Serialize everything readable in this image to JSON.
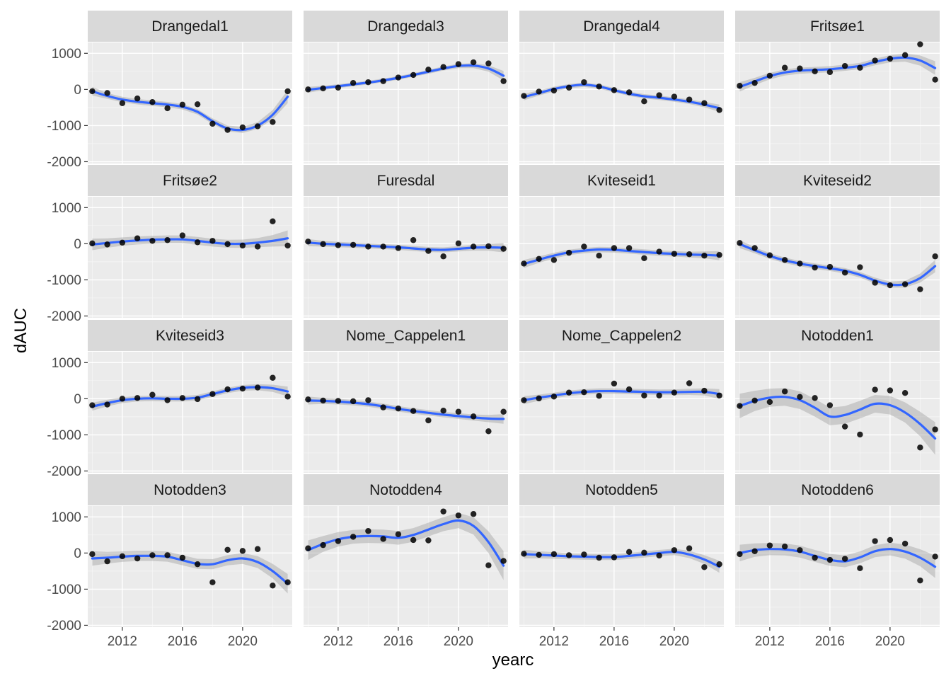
{
  "chart_data": {
    "type": "scatter",
    "xlabel": "yearc",
    "ylabel": "dAUC",
    "xlim": [
      2009.7,
      2023.3
    ],
    "ylim": [
      -2050,
      1300
    ],
    "x_ticks": [
      2012,
      2016,
      2020
    ],
    "x_tick_labels": [
      "2012",
      "2016",
      "2020"
    ],
    "y_ticks": [
      -2000,
      -1000,
      0,
      1000
    ],
    "y_tick_labels": [
      "-2000",
      "-1000",
      "0",
      "1000"
    ],
    "grid": true,
    "facet_columns": 4,
    "years": [
      2010,
      2011,
      2012,
      2013,
      2014,
      2015,
      2016,
      2017,
      2018,
      2019,
      2020,
      2021,
      2022,
      2023
    ],
    "colors": {
      "panel": "#EBEBEB",
      "strip": "#D9D9D9",
      "points": "#000000",
      "smooth_line": "#3366FF",
      "confidence_band": "#999999"
    },
    "panels": [
      {
        "name": "Drangedal1",
        "points": [
          -50,
          -100,
          -380,
          -250,
          -350,
          -520,
          -420,
          -410,
          -950,
          -1120,
          -1050,
          -1020,
          -900,
          -50
        ],
        "smooth": [
          -50,
          -180,
          -280,
          -340,
          -380,
          -420,
          -480,
          -620,
          -880,
          -1080,
          -1120,
          -1000,
          -700,
          -200
        ],
        "ci": [
          120,
          80,
          75,
          75,
          75,
          75,
          75,
          75,
          80,
          80,
          85,
          95,
          130,
          180
        ]
      },
      {
        "name": "Drangedal3",
        "points": [
          0,
          30,
          50,
          180,
          200,
          230,
          330,
          400,
          550,
          620,
          700,
          750,
          720,
          230
        ],
        "smooth": [
          -10,
          40,
          90,
          140,
          190,
          250,
          320,
          400,
          490,
          580,
          650,
          660,
          580,
          380
        ],
        "ci": [
          80,
          60,
          55,
          50,
          50,
          50,
          50,
          50,
          55,
          55,
          60,
          70,
          90,
          130
        ]
      },
      {
        "name": "Drangedal4",
        "points": [
          -180,
          -60,
          -30,
          50,
          200,
          80,
          -20,
          -80,
          -330,
          -160,
          -200,
          -280,
          -380,
          -570
        ],
        "smooth": [
          -210,
          -100,
          10,
          90,
          130,
          80,
          -20,
          -120,
          -190,
          -230,
          -280,
          -340,
          -420,
          -520
        ],
        "ci": [
          90,
          70,
          65,
          60,
          60,
          60,
          60,
          60,
          60,
          60,
          60,
          65,
          75,
          100
        ]
      },
      {
        "name": "Fritsøe1",
        "points": [
          100,
          180,
          380,
          600,
          580,
          500,
          480,
          650,
          600,
          800,
          850,
          950,
          1250,
          270
        ],
        "smooth": [
          70,
          220,
          370,
          470,
          520,
          540,
          560,
          600,
          650,
          760,
          850,
          880,
          800,
          590
        ],
        "ci": [
          130,
          100,
          90,
          85,
          85,
          85,
          85,
          85,
          85,
          90,
          100,
          110,
          140,
          190
        ]
      },
      {
        "name": "Fritsøe2",
        "points": [
          10,
          -20,
          30,
          150,
          80,
          100,
          230,
          40,
          80,
          -10,
          -50,
          -80,
          620,
          -50
        ],
        "smooth": [
          -20,
          20,
          60,
          90,
          110,
          120,
          120,
          80,
          30,
          0,
          0,
          30,
          80,
          150
        ],
        "ci": [
          160,
          130,
          115,
          110,
          110,
          110,
          110,
          110,
          110,
          110,
          115,
          125,
          160,
          220
        ]
      },
      {
        "name": "Furesdal",
        "points": [
          60,
          -10,
          -40,
          -30,
          -80,
          -80,
          -120,
          100,
          -200,
          -350,
          10,
          -80,
          -70,
          -140
        ],
        "smooth": [
          30,
          0,
          -20,
          -40,
          -60,
          -80,
          -100,
          -130,
          -160,
          -170,
          -140,
          -110,
          -100,
          -110
        ],
        "ci": [
          100,
          80,
          75,
          70,
          70,
          70,
          70,
          70,
          70,
          70,
          75,
          80,
          95,
          130
        ]
      },
      {
        "name": "Kviteseid1",
        "points": [
          -550,
          -420,
          -450,
          -250,
          -80,
          -330,
          -120,
          -120,
          -400,
          -220,
          -280,
          -290,
          -330,
          -310
        ],
        "smooth": [
          -560,
          -440,
          -330,
          -240,
          -190,
          -160,
          -170,
          -200,
          -230,
          -260,
          -280,
          -300,
          -310,
          -330
        ],
        "ci": [
          110,
          90,
          80,
          75,
          75,
          75,
          75,
          75,
          75,
          75,
          75,
          80,
          95,
          125
        ]
      },
      {
        "name": "Kviteseid2",
        "points": [
          20,
          -120,
          -320,
          -450,
          -550,
          -660,
          -640,
          -800,
          -650,
          -1080,
          -1150,
          -1120,
          -1260,
          -350
        ],
        "smooth": [
          -10,
          -180,
          -340,
          -460,
          -550,
          -620,
          -680,
          -750,
          -860,
          -1020,
          -1130,
          -1120,
          -950,
          -620
        ],
        "ci": [
          110,
          85,
          80,
          75,
          75,
          75,
          75,
          75,
          80,
          80,
          85,
          95,
          125,
          170
        ]
      },
      {
        "name": "Kviteseid3",
        "points": [
          -180,
          -160,
          0,
          20,
          110,
          -40,
          20,
          -10,
          130,
          260,
          280,
          310,
          580,
          60
        ],
        "smooth": [
          -220,
          -120,
          -40,
          0,
          10,
          0,
          0,
          30,
          130,
          230,
          300,
          320,
          290,
          200
        ],
        "ci": [
          110,
          90,
          80,
          75,
          75,
          75,
          75,
          75,
          75,
          75,
          80,
          85,
          100,
          135
        ]
      },
      {
        "name": "Nome_Cappelen1",
        "points": [
          -20,
          -50,
          -60,
          -70,
          -40,
          -240,
          -270,
          -340,
          -600,
          -330,
          -360,
          -490,
          -900,
          -360
        ],
        "smooth": [
          -50,
          -60,
          -80,
          -110,
          -150,
          -210,
          -280,
          -340,
          -390,
          -440,
          -480,
          -520,
          -550,
          -560
        ],
        "ci": [
          110,
          85,
          80,
          75,
          75,
          75,
          75,
          75,
          75,
          75,
          80,
          85,
          100,
          135
        ]
      },
      {
        "name": "Nome_Cappelen2",
        "points": [
          -40,
          10,
          60,
          170,
          180,
          80,
          420,
          260,
          90,
          90,
          170,
          430,
          220,
          90
        ],
        "smooth": [
          -40,
          30,
          90,
          150,
          190,
          210,
          210,
          200,
          190,
          180,
          180,
          190,
          190,
          130
        ],
        "ci": [
          110,
          85,
          80,
          75,
          75,
          75,
          75,
          75,
          75,
          75,
          80,
          85,
          100,
          135
        ]
      },
      {
        "name": "Notodden1",
        "points": [
          -200,
          -50,
          -90,
          200,
          50,
          20,
          -180,
          -770,
          -990,
          250,
          230,
          160,
          -1350,
          -850
        ],
        "smooth": [
          -200,
          -60,
          30,
          50,
          -40,
          -250,
          -490,
          -450,
          -300,
          -140,
          -180,
          -380,
          -700,
          -1100
        ],
        "ci": [
          340,
          280,
          250,
          245,
          245,
          245,
          245,
          245,
          245,
          245,
          255,
          280,
          340,
          450
        ]
      },
      {
        "name": "Notodden3",
        "points": [
          -30,
          -230,
          -90,
          -150,
          -60,
          -60,
          -130,
          -310,
          -810,
          90,
          60,
          110,
          -900,
          -810
        ],
        "smooth": [
          -150,
          -130,
          -100,
          -80,
          -80,
          -100,
          -200,
          -300,
          -310,
          -200,
          -150,
          -250,
          -500,
          -850
        ],
        "ci": [
          200,
          160,
          145,
          140,
          140,
          140,
          140,
          140,
          140,
          140,
          150,
          165,
          200,
          270
        ]
      },
      {
        "name": "Notodden4",
        "points": [
          130,
          220,
          330,
          450,
          610,
          390,
          520,
          360,
          350,
          1150,
          1040,
          1080,
          -340,
          -220
        ],
        "smooth": [
          80,
          250,
          380,
          450,
          470,
          460,
          420,
          500,
          650,
          800,
          900,
          750,
          300,
          -350
        ],
        "ci": [
          270,
          220,
          200,
          190,
          190,
          190,
          190,
          190,
          190,
          195,
          210,
          240,
          300,
          400
        ]
      },
      {
        "name": "Notodden5",
        "points": [
          -20,
          -50,
          -30,
          -60,
          -40,
          -130,
          -120,
          30,
          10,
          -70,
          80,
          130,
          -390,
          -310
        ],
        "smooth": [
          -30,
          -50,
          -70,
          -90,
          -100,
          -110,
          -110,
          -80,
          -40,
          0,
          30,
          -40,
          -180,
          -380
        ],
        "ci": [
          120,
          100,
          90,
          85,
          85,
          85,
          85,
          85,
          85,
          85,
          90,
          100,
          120,
          165
        ]
      },
      {
        "name": "Notodden6",
        "points": [
          -30,
          50,
          210,
          180,
          80,
          -130,
          -190,
          -160,
          -420,
          330,
          360,
          260,
          -760,
          -100
        ],
        "smooth": [
          0,
          80,
          110,
          100,
          40,
          -80,
          -190,
          -230,
          -120,
          50,
          110,
          40,
          -130,
          -380
        ],
        "ci": [
          230,
          185,
          170,
          165,
          165,
          165,
          165,
          165,
          165,
          165,
          175,
          195,
          235,
          310
        ]
      }
    ]
  }
}
